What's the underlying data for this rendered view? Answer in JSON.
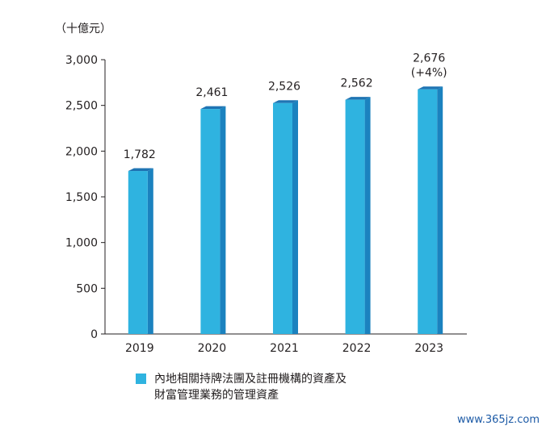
{
  "unit_label": "（十億元）",
  "legend": {
    "line1": "內地相關持牌法團及註冊機構的資產及",
    "line2": "財富管理業務的管理資產"
  },
  "watermark": "www.365jz.com",
  "colors": {
    "bar_front": "#2fb3e0",
    "bar_side": "#1b82bf",
    "bar_top": "#1f74b3",
    "axis": "#231f20"
  },
  "chart_data": {
    "type": "bar",
    "title": "",
    "xlabel": "",
    "ylabel": "",
    "categories": [
      "2019",
      "2020",
      "2021",
      "2022",
      "2023"
    ],
    "series": [
      {
        "name": "內地相關持牌法團及註冊機構的資產及財富管理業務的管理資產",
        "values": [
          1782,
          2461,
          2526,
          2562,
          2676
        ]
      }
    ],
    "data_labels": [
      "1,782",
      "2,461",
      "2,526",
      "2,562",
      "2,676"
    ],
    "extra_label": {
      "index": 4,
      "text": "(+4%)"
    },
    "ylim": [
      0,
      3000
    ],
    "yticks": [
      0,
      500,
      1000,
      1500,
      2000,
      2500,
      3000
    ],
    "ytick_labels": [
      "0",
      "500",
      "1,000",
      "1,500",
      "2,000",
      "2,500",
      "3,000"
    ],
    "grid": false,
    "legend_position": "bottom"
  }
}
